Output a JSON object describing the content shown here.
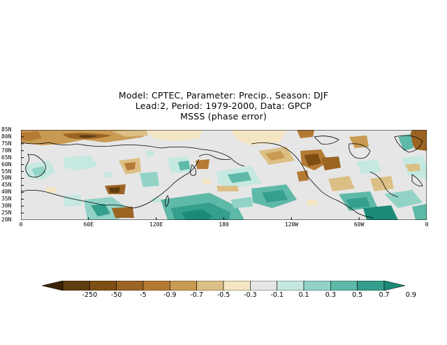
{
  "title": {
    "line1": "Model: CPTEC, Parameter: Precip., Season: DJF",
    "line2": "Lead:2, Period: 1979-2000, Data: GPCP",
    "line3": "MSSS (phase error)"
  },
  "map": {
    "projection": "cylindrical",
    "lon_range": [
      0,
      360
    ],
    "lat_range": [
      20,
      85
    ],
    "lat_ticks": [
      "85N",
      "80N",
      "75N",
      "70N",
      "65N",
      "60N",
      "55N",
      "50N",
      "45N",
      "40N",
      "35N",
      "30N",
      "25N",
      "20N"
    ],
    "lon_ticks": [
      "0",
      "60E",
      "120E",
      "180",
      "120W",
      "60W",
      "0"
    ],
    "coastlines": true,
    "missing_color": "#e6e6e6"
  },
  "colorbar": {
    "labels": [
      "-250",
      "-50",
      "-5",
      "-0.9",
      "-0.7",
      "-0.5",
      "-0.3",
      "-0.1",
      "0.1",
      "0.3",
      "0.5",
      "0.7",
      "0.9"
    ],
    "colors": [
      "#3a2405",
      "#5e3c0e",
      "#7f4e14",
      "#9b6423",
      "#b47a34",
      "#c99a52",
      "#dcbf84",
      "#f4e6c2",
      "#e6e6e6",
      "#c5e8e1",
      "#92d3c6",
      "#5fb9a8",
      "#359f8d",
      "#1b8a78"
    ]
  }
}
